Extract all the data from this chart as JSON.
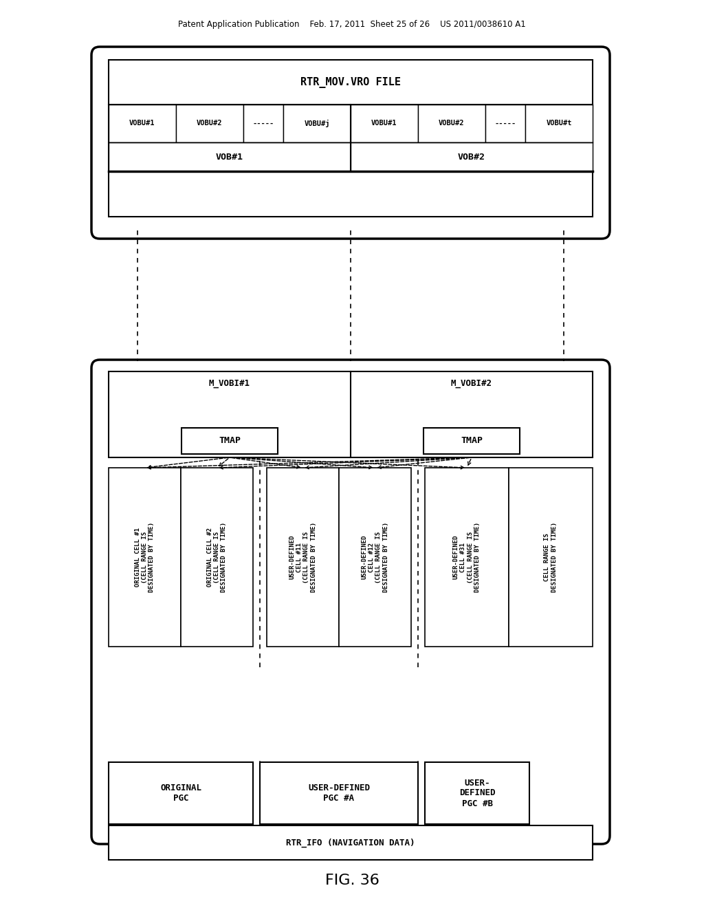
{
  "bg_color": "#ffffff",
  "header_text": "Patent Application Publication    Feb. 17, 2011  Sheet 25 of 26    US 2011/0038610 A1",
  "fig_label": "FIG. 36",
  "top_box_title": "RTR_MOV.VRO FILE",
  "vobu_row": [
    "VOBU#1",
    "VOBU#2",
    "-----",
    "VOBU#j",
    "VOBU#1",
    "VOBU#2",
    "-----",
    "VOBU#t"
  ],
  "vob_row": [
    "VOB#1",
    "VOB#2"
  ],
  "mvobi_labels": [
    "M_VOBI#1",
    "M_VOBI#2"
  ],
  "tmap_labels": [
    "TMAP",
    "TMAP"
  ],
  "cell_group1": [
    "ORIGINAL CELL #1\n(CELL RANGE IS\nDESIGNATED BY TIME)",
    "ORIGINAL CELL #2\n(CELL RANGE IS\nDESIGNATED BY TIME)"
  ],
  "cell_group2": [
    "USER-DEFINED\nCELL #11\n(CELL RANGE IS\nDESIGNATED BY TIME)",
    "USER-DEFINED\nCELL #12\n(CELL RANGE IS\nDESIGNATED BY TIME)"
  ],
  "cell_group3": [
    "USER-DEFINED\nCELL #31\n(CELL RANGE IS\nDESIGNATED BY TIME)"
  ],
  "pgc_labels": [
    "ORIGINAL\nPGC",
    "USER-DEFINED\nPGC #A",
    "USER-\nDEFINED\nPGC #B"
  ],
  "nav_label": "RTR_IFO (NAVIGATION DATA)"
}
